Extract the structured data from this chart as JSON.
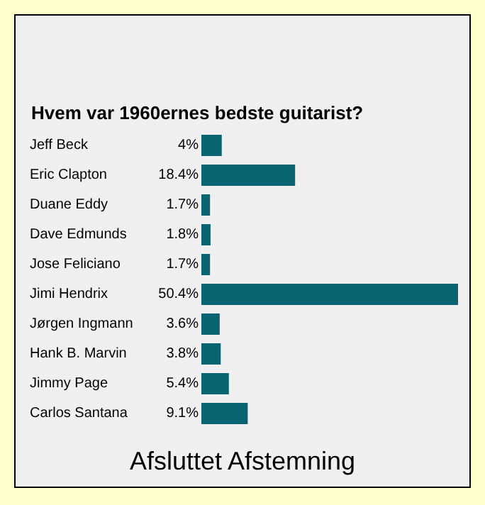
{
  "chart_data": {
    "type": "bar",
    "orientation": "horizontal",
    "title": "Hvem var 1960ernes bedste guitarist?",
    "categories": [
      "Jeff Beck",
      "Eric Clapton",
      "Duane Eddy",
      "Dave Edmunds",
      "Jose Feliciano",
      "Jimi Hendrix",
      "Jørgen Ingmann",
      "Hank B. Marvin",
      "Jimmy Page",
      "Carlos Santana"
    ],
    "values": [
      4,
      18.4,
      1.7,
      1.8,
      1.7,
      50.4,
      3.6,
      3.8,
      5.4,
      9.1
    ],
    "value_labels": [
      "4%",
      "18.4%",
      "1.7%",
      "1.8%",
      "1.7%",
      "50.4%",
      "3.6%",
      "3.8%",
      "5.4%",
      "9.1%"
    ],
    "color": "#0a6370",
    "annotations": [
      "Afsluttet Afstemning"
    ]
  }
}
